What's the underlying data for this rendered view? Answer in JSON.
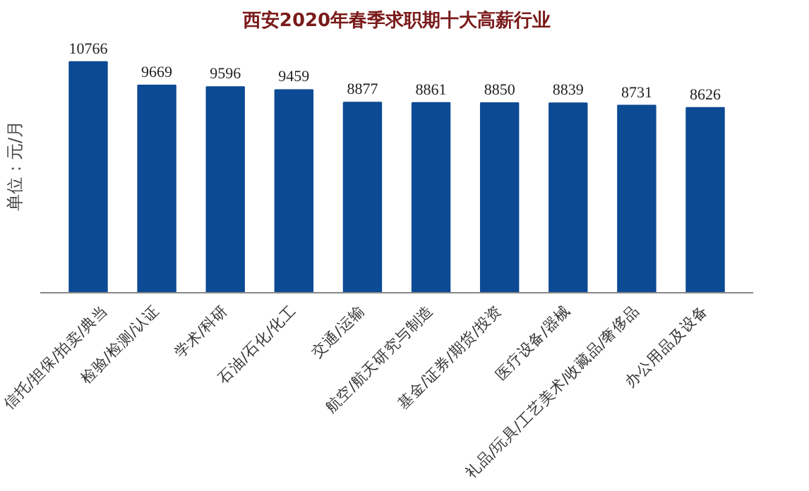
{
  "chart_data": {
    "type": "bar",
    "title": "西安2020年春季求职期十大高薪行业",
    "ylabel": "单位：元/月",
    "categories": [
      "信托/担保/拍卖/典当",
      "检验/检测/认证",
      "学术/科研",
      "石油/石化/化工",
      "交通/运输",
      "航空/航天研究与制造",
      "基金/证券/期货/投资",
      "医疗设备/器械",
      "礼品/玩具/工艺美术/收藏品/奢侈品",
      "办公用品及设备"
    ],
    "values": [
      10766,
      9669,
      9596,
      9459,
      8877,
      8861,
      8850,
      8839,
      8731,
      8626
    ],
    "color": "#0d4a94",
    "data_labels": true,
    "grid": false
  }
}
